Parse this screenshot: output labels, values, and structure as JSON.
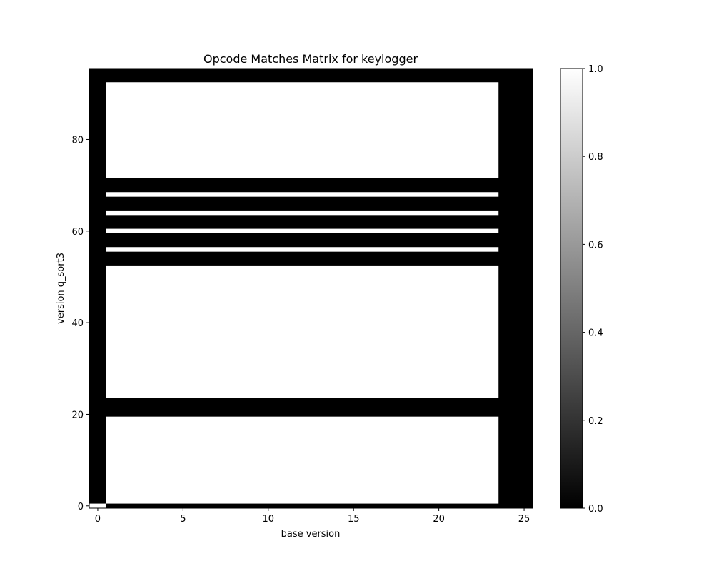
{
  "chart_data": {
    "type": "heatmap",
    "title": "Opcode Matches Matrix for keylogger",
    "xlabel": "base version",
    "ylabel": "version q_sort3",
    "x_range": [
      -0.5,
      25.5
    ],
    "y_range": [
      -0.5,
      95.5
    ],
    "x_ticks": [
      0,
      5,
      10,
      15,
      20,
      25
    ],
    "y_ticks": [
      0,
      20,
      40,
      60,
      80
    ],
    "colorscale": "gray",
    "value_range": [
      0,
      1
    ],
    "colorbar_ticks": [
      "0.0",
      "0.2",
      "0.4",
      "0.6",
      "0.8",
      "1.0"
    ],
    "colorbar_tick_values": [
      0,
      0.2,
      0.4,
      0.6,
      0.8,
      1.0
    ],
    "grid": false,
    "matrix_description": "value 1 (white) where listed; all other cells 0 (black)",
    "ones": [
      {
        "rows": [
          0,
          0
        ],
        "cols": [
          0,
          0
        ]
      },
      {
        "rows": [
          1,
          19
        ],
        "cols": [
          1,
          23
        ]
      },
      {
        "rows": [
          24,
          52
        ],
        "cols": [
          1,
          23
        ]
      },
      {
        "rows": [
          56,
          56
        ],
        "cols": [
          1,
          23
        ]
      },
      {
        "rows": [
          60,
          60
        ],
        "cols": [
          1,
          23
        ]
      },
      {
        "rows": [
          64,
          64
        ],
        "cols": [
          1,
          23
        ]
      },
      {
        "rows": [
          68,
          68
        ],
        "cols": [
          1,
          23
        ]
      },
      {
        "rows": [
          72,
          92
        ],
        "cols": [
          1,
          23
        ]
      }
    ]
  }
}
